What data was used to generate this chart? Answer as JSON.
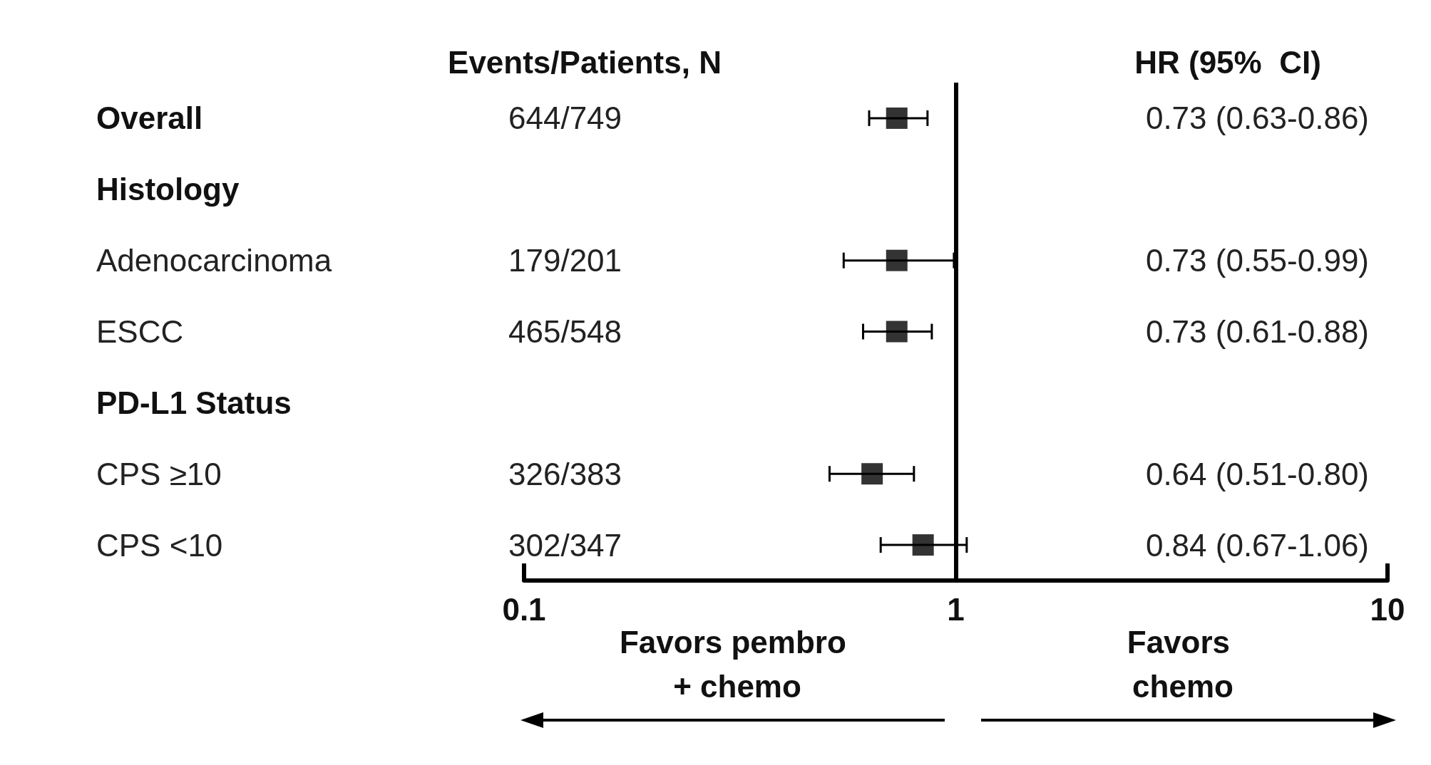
{
  "chart_data": {
    "type": "scatter",
    "orientation": "horizontal",
    "categories": [
      "Overall",
      "Histology",
      "Adenocarcinoma",
      "ESCC",
      "PD-L1 Status",
      "CPS ≥10",
      "CPS <10"
    ],
    "series": [
      {
        "color": "#000000",
        "values": [
          0.73,
          null,
          0.73,
          0.73,
          null,
          0.64,
          0.84
        ],
        "errors": [
          [
            0.63,
            0.86
          ],
          null,
          [
            0.55,
            0.99
          ],
          [
            0.61,
            0.88
          ],
          null,
          [
            0.51,
            0.8
          ],
          [
            0.67,
            1.06
          ]
        ]
      }
    ],
    "xlim": [
      0.1,
      10
    ],
    "xticks": [
      0.1,
      1,
      10
    ],
    "log": "x",
    "marker": "square",
    "grid": false,
    "ref_lines": [
      {
        "axis": "x",
        "value": 1,
        "color": "#000000"
      }
    ],
    "annotations": [
      "Events/Patients, N",
      "HR (95%  CI)",
      "Favors pembro + chemo",
      "Favors chemo",
      "644/749",
      "179/201",
      "465/548",
      "326/383",
      "302/347",
      "0.73 (0.63-0.86)",
      "0.73 (0.55-0.99)",
      "0.73 (0.61-0.88)",
      "0.64 (0.51-0.80)",
      "0.84 (0.67-1.06)"
    ]
  }
}
